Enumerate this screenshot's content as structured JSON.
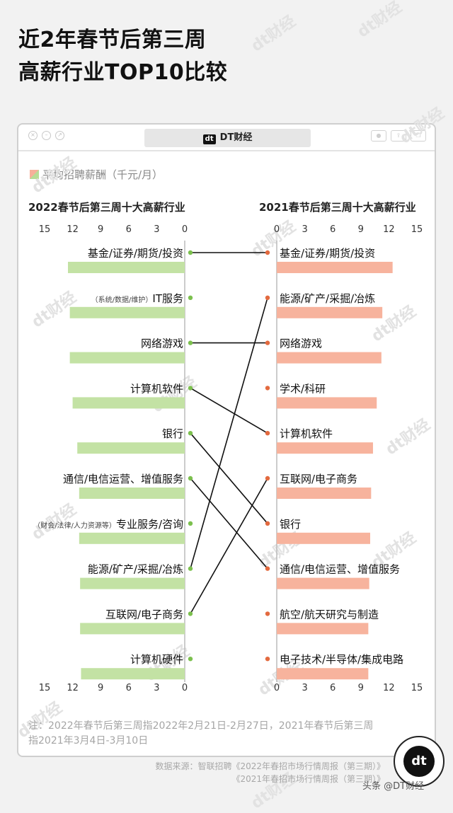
{
  "title": "近2年春节后第三周\n高薪行业TOP10比较",
  "watermark": "dt财经",
  "window": {
    "tab_logo": "dt",
    "tab_title": "DT财经"
  },
  "legend": "平均招聘薪酬（千元/月）",
  "left_title": "2022春节后第三周十大高薪行业",
  "right_title": "2021春节后第三周十大高薪行业",
  "note": "注：2022年春节后第三周指2022年2月21日-2月27日，2021年春节后第三周指2021年3月4日-3月10日",
  "source_lines": [
    "数据来源：智联招聘《2022年春招市场行情周报（第三期）》",
    "《2021年春招市场行情周报（第三期）》"
  ],
  "badge_logo": "dt",
  "credit": "头条 @DT财经",
  "colors": {
    "left_bar": "#c3e2a4",
    "left_dot": "#7cc04e",
    "right_bar": "#f7b39d",
    "right_dot": "#e36a3f",
    "line": "#111111",
    "axis": "#bbbbbb"
  },
  "chart_data": {
    "type": "bar",
    "legend": "平均招聘薪酬（千元/月）",
    "xlim": [
      0,
      15
    ],
    "ticks": [
      15,
      12,
      9,
      6,
      3,
      0
    ],
    "panels": [
      {
        "title": "2022春节后第三周十大高薪行业",
        "categories": [
          {
            "name": "基金/证券/期货/投资",
            "prefix": "",
            "value": 12.5
          },
          {
            "name": "IT服务",
            "prefix": "（系统/数据/维护）",
            "value": 12.3
          },
          {
            "name": "网络游戏",
            "prefix": "",
            "value": 12.3
          },
          {
            "name": "计算机软件",
            "prefix": "",
            "value": 12.0
          },
          {
            "name": "银行",
            "prefix": "",
            "value": 11.5
          },
          {
            "name": "通信/电信运营、增值服务",
            "prefix": "",
            "value": 11.3
          },
          {
            "name": "专业服务/咨询",
            "prefix": "（财会/法律/人力资源等）",
            "value": 11.3
          },
          {
            "name": "能源/矿产/采掘/冶炼",
            "prefix": "",
            "value": 11.2
          },
          {
            "name": "互联网/电子商务",
            "prefix": "",
            "value": 11.2
          },
          {
            "name": "计算机硬件",
            "prefix": "",
            "value": 11.1
          }
        ]
      },
      {
        "title": "2021春节后第三周十大高薪行业",
        "categories": [
          {
            "name": "基金/证券/期货/投资",
            "value": 12.4
          },
          {
            "name": "能源/矿产/采掘/冶炼",
            "value": 11.3
          },
          {
            "name": "网络游戏",
            "value": 11.2
          },
          {
            "name": "学术/科研",
            "value": 10.7
          },
          {
            "name": "计算机软件",
            "value": 10.3
          },
          {
            "name": "互联网/电子商务",
            "value": 10.1
          },
          {
            "name": "银行",
            "value": 10.0
          },
          {
            "name": "通信/电信运营、增值服务",
            "value": 9.9
          },
          {
            "name": "航空/航天研究与制造",
            "value": 9.8
          },
          {
            "name": "电子技术/半导体/集成电路",
            "value": 9.8
          }
        ]
      }
    ]
  }
}
